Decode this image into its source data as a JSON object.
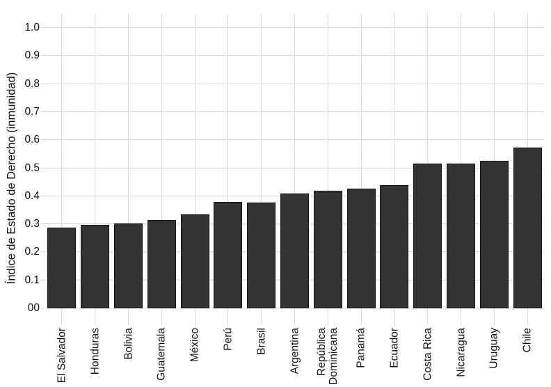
{
  "chart_data": {
    "type": "bar",
    "title": "",
    "xlabel": "",
    "ylabel": "Índice de Estado de Derecho (inmunidad)",
    "categories": [
      "El Salvador",
      "Honduras",
      "Bolivia",
      "Guatemala",
      "México",
      "Perú",
      "Brasil",
      "Argentina",
      "República\nDominicana",
      "Panamá",
      "Ecuador",
      "Costa Rica",
      "Nicaragua",
      "Uruguay",
      "Chile"
    ],
    "values": [
      0.288,
      0.298,
      0.303,
      0.316,
      0.335,
      0.38,
      0.378,
      0.41,
      0.42,
      0.428,
      0.44,
      0.516,
      0.517,
      0.526,
      0.573
    ],
    "ylim": [
      0,
      1.05
    ],
    "yticks": [
      {
        "v": 0.0,
        "label": "00"
      },
      {
        "v": 0.1,
        "label": "0.1"
      },
      {
        "v": 0.2,
        "label": "0.2"
      },
      {
        "v": 0.3,
        "label": "0.3"
      },
      {
        "v": 0.4,
        "label": "0.4"
      },
      {
        "v": 0.5,
        "label": "0.5"
      },
      {
        "v": 0.6,
        "label": "0.6"
      },
      {
        "v": 0.7,
        "label": "0.7"
      },
      {
        "v": 0.8,
        "label": "0.8"
      },
      {
        "v": 0.9,
        "label": "0.9"
      },
      {
        "v": 1.0,
        "label": "1.0"
      }
    ],
    "grid": {
      "horizontal": true,
      "vertical_at_category_centers": true,
      "minor": false
    },
    "legend": "none",
    "style": {
      "bar_fill": "#333333",
      "bar_stroke": "#141414",
      "grid_color": "#d9d9d9",
      "tick_color": "#d9d9d9",
      "text_color": "#111111",
      "background": "#ffffff"
    }
  }
}
